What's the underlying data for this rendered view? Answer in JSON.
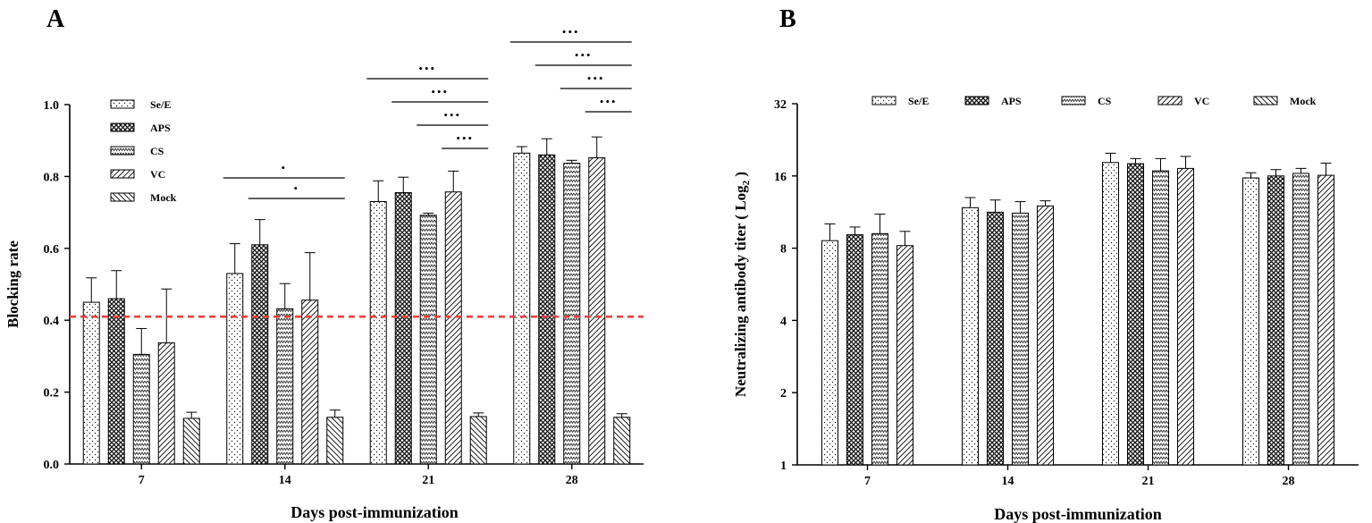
{
  "chart_data": [
    {
      "panel": "A",
      "type": "bar",
      "categories": [
        "7",
        "14",
        "21",
        "28"
      ],
      "xlabel": "Days post-immunization",
      "ylabel": "Blocking rate",
      "ylim": [
        0,
        1.0
      ],
      "yticks": [
        "0.0",
        "0.2",
        "0.4",
        "0.6",
        "0.8",
        "1.0"
      ],
      "threshold": 0.41,
      "legend_position": "top-left",
      "series": [
        {
          "name": "Se/E",
          "pattern": "dots",
          "values": [
            0.45,
            0.53,
            0.73,
            0.865
          ],
          "errors": [
            0.068,
            0.083,
            0.058,
            0.018
          ]
        },
        {
          "name": "APS",
          "pattern": "cross",
          "values": [
            0.46,
            0.61,
            0.755,
            0.86
          ],
          "errors": [
            0.078,
            0.07,
            0.043,
            0.045
          ]
        },
        {
          "name": "CS",
          "pattern": "zigzag",
          "values": [
            0.305,
            0.432,
            0.692,
            0.837
          ],
          "errors": [
            0.072,
            0.07,
            0.006,
            0.008
          ]
        },
        {
          "name": "VC",
          "pattern": "diag",
          "values": [
            0.337,
            0.456,
            0.757,
            0.852
          ],
          "errors": [
            0.15,
            0.132,
            0.058,
            0.058
          ]
        },
        {
          "name": "Mock",
          "pattern": "backdiag",
          "values": [
            0.127,
            0.13,
            0.132,
            0.13
          ],
          "errors": [
            0.017,
            0.02,
            0.01,
            0.01
          ]
        }
      ],
      "significance": [
        {
          "category": 1,
          "from": 0,
          "to": 4,
          "label": "•",
          "level": 0
        },
        {
          "category": 1,
          "from": 1,
          "to": 4,
          "label": "•",
          "level": 1
        },
        {
          "category": 2,
          "from": 0,
          "to": 4,
          "label": "•••",
          "level": 0
        },
        {
          "category": 2,
          "from": 1,
          "to": 4,
          "label": "•••",
          "level": 1
        },
        {
          "category": 2,
          "from": 2,
          "to": 4,
          "label": "•••",
          "level": 2
        },
        {
          "category": 2,
          "from": 3,
          "to": 4,
          "label": "•••",
          "level": 3
        },
        {
          "category": 3,
          "from": 0,
          "to": 4,
          "label": "•••",
          "level": 0
        },
        {
          "category": 3,
          "from": 1,
          "to": 4,
          "label": "•••",
          "level": 1
        },
        {
          "category": 3,
          "from": 2,
          "to": 4,
          "label": "•••",
          "level": 2
        },
        {
          "category": 3,
          "from": 3,
          "to": 4,
          "label": "•••",
          "level": 3
        }
      ]
    },
    {
      "panel": "B",
      "type": "bar",
      "categories": [
        "7",
        "14",
        "21",
        "28"
      ],
      "xlabel": "Days post-immunization",
      "ylabel": "Neutralizing antibody titer ( Log",
      "ylabel_sub": "2",
      "ylabel_end": " )",
      "yscale": "log2",
      "ylim": [
        1,
        32
      ],
      "yticks": [
        "1",
        "2",
        "4",
        "8",
        "16",
        "32"
      ],
      "legend_position": "top",
      "legend": [
        "Se/E",
        "APS",
        "CS",
        "VC",
        "Mock"
      ],
      "series": [
        {
          "name": "Se/E",
          "pattern": "dots",
          "values": [
            8.6,
            11.8,
            18.2,
            15.7
          ],
          "errors": [
            1.5,
            1.2,
            1.7,
            0.8
          ]
        },
        {
          "name": "APS",
          "pattern": "cross",
          "values": [
            9.1,
            11.3,
            18.0,
            16.0
          ],
          "errors": [
            0.7,
            1.4,
            0.9,
            1.0
          ]
        },
        {
          "name": "CS",
          "pattern": "zigzag",
          "values": [
            9.2,
            11.2,
            16.8,
            16.4
          ],
          "errors": [
            1.9,
            1.3,
            2.1,
            0.8
          ]
        },
        {
          "name": "VC",
          "pattern": "diag",
          "values": [
            8.2,
            12.0,
            17.2,
            16.1
          ],
          "errors": [
            1.2,
            0.6,
            2.1,
            2.0
          ]
        }
      ]
    }
  ]
}
